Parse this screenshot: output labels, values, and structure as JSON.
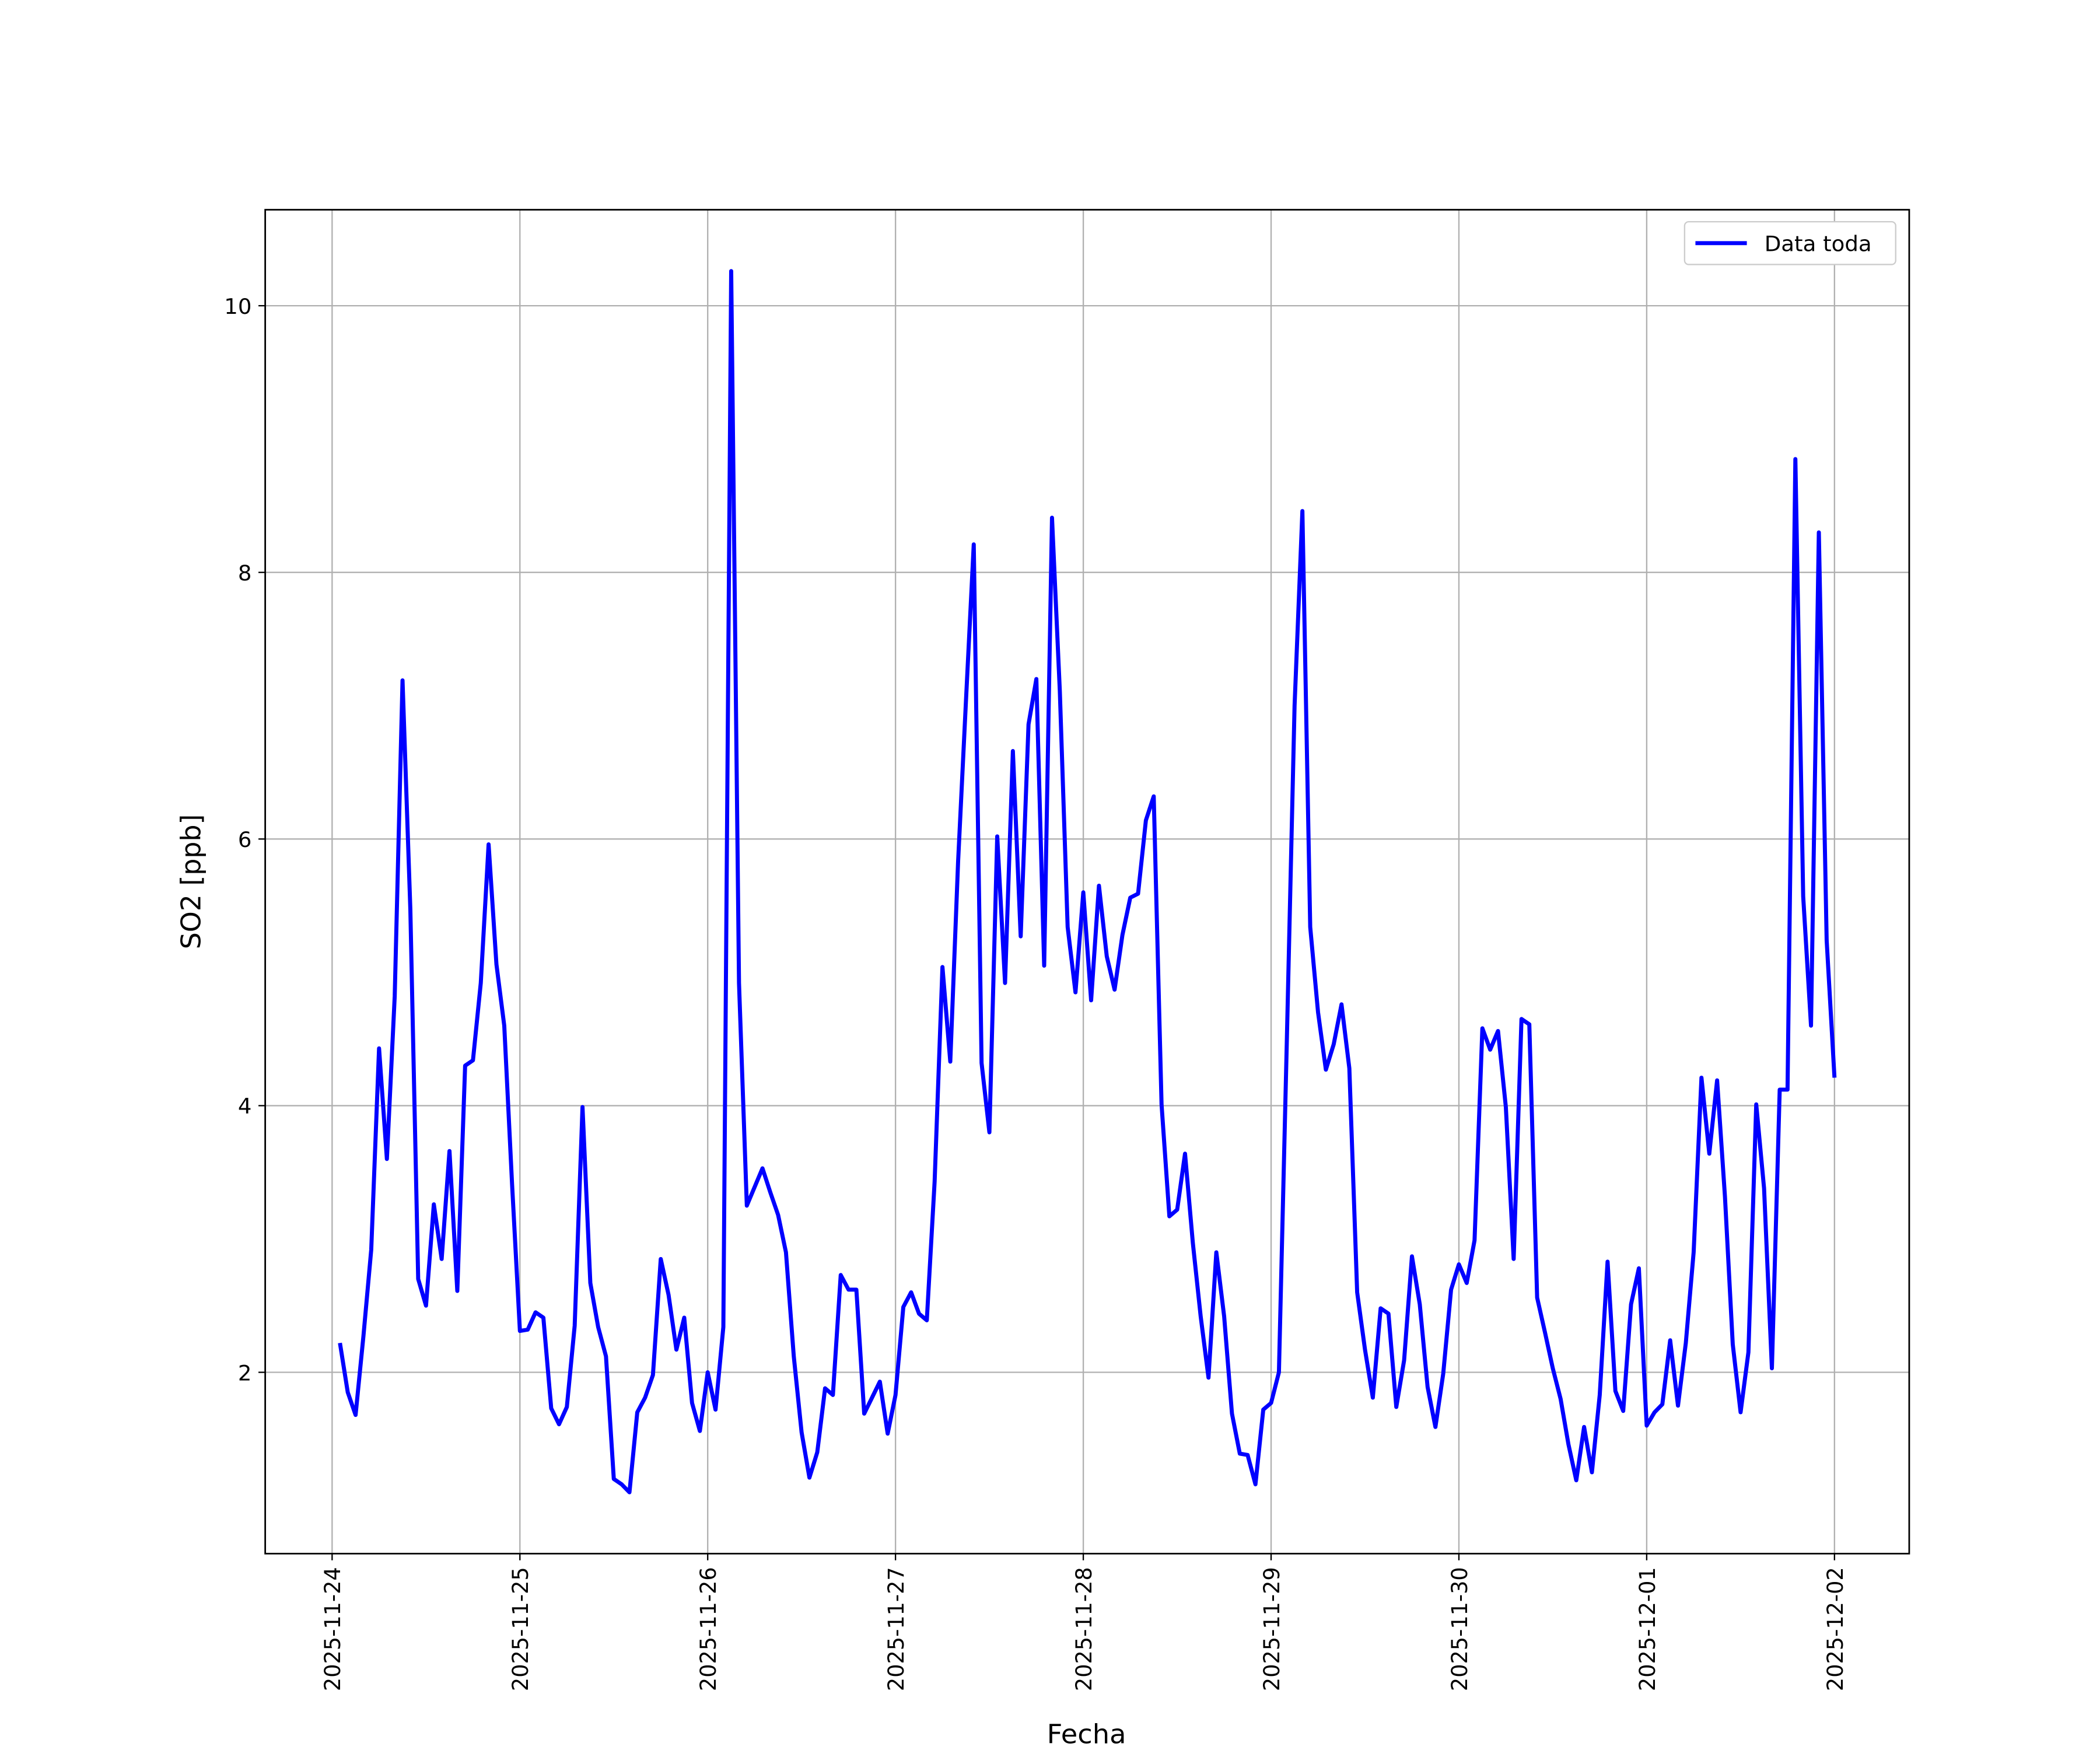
{
  "chart_data": {
    "type": "line",
    "xlabel": "Fecha",
    "ylabel": "SO2 [ppb]",
    "x": [
      "2025-11-24 01:00",
      "2025-11-24 02:00",
      "2025-11-24 03:00",
      "2025-11-24 04:00",
      "2025-11-24 05:00",
      "2025-11-24 06:00",
      "2025-11-24 07:00",
      "2025-11-24 08:00",
      "2025-11-24 09:00",
      "2025-11-24 10:00",
      "2025-11-24 11:00",
      "2025-11-24 12:00",
      "2025-11-24 13:00",
      "2025-11-24 14:00",
      "2025-11-24 15:00",
      "2025-11-24 16:00",
      "2025-11-24 17:00",
      "2025-11-24 18:00",
      "2025-11-24 19:00",
      "2025-11-24 20:00",
      "2025-11-24 21:00",
      "2025-11-24 22:00",
      "2025-11-24 23:00",
      "2025-11-25 00:00",
      "2025-11-25 01:00",
      "2025-11-25 02:00",
      "2025-11-25 03:00",
      "2025-11-25 04:00",
      "2025-11-25 05:00",
      "2025-11-25 06:00",
      "2025-11-25 07:00",
      "2025-11-25 08:00",
      "2025-11-25 09:00",
      "2025-11-25 10:00",
      "2025-11-25 11:00",
      "2025-11-25 12:00",
      "2025-11-25 13:00",
      "2025-11-25 14:00",
      "2025-11-25 15:00",
      "2025-11-25 16:00",
      "2025-11-25 17:00",
      "2025-11-25 18:00",
      "2025-11-25 19:00",
      "2025-11-25 20:00",
      "2025-11-25 21:00",
      "2025-11-25 22:00",
      "2025-11-25 23:00",
      "2025-11-26 00:00",
      "2025-11-26 01:00",
      "2025-11-26 02:00",
      "2025-11-26 03:00",
      "2025-11-26 04:00",
      "2025-11-26 05:00",
      "2025-11-26 06:00",
      "2025-11-26 07:00",
      "2025-11-26 08:00",
      "2025-11-26 09:00",
      "2025-11-26 10:00",
      "2025-11-26 11:00",
      "2025-11-26 12:00",
      "2025-11-26 13:00",
      "2025-11-26 14:00",
      "2025-11-26 15:00",
      "2025-11-26 16:00",
      "2025-11-26 17:00",
      "2025-11-26 18:00",
      "2025-11-26 19:00",
      "2025-11-26 20:00",
      "2025-11-26 21:00",
      "2025-11-26 22:00",
      "2025-11-26 23:00",
      "2025-11-27 00:00",
      "2025-11-27 01:00",
      "2025-11-27 02:00",
      "2025-11-27 03:00",
      "2025-11-27 04:00",
      "2025-11-27 05:00",
      "2025-11-27 06:00",
      "2025-11-27 07:00",
      "2025-11-27 08:00",
      "2025-11-27 09:00",
      "2025-11-27 10:00",
      "2025-11-27 11:00",
      "2025-11-27 12:00",
      "2025-11-27 13:00",
      "2025-11-27 14:00",
      "2025-11-27 15:00",
      "2025-11-27 16:00",
      "2025-11-27 17:00",
      "2025-11-27 18:00",
      "2025-11-27 19:00",
      "2025-11-27 20:00",
      "2025-11-27 21:00",
      "2025-11-27 22:00",
      "2025-11-27 23:00",
      "2025-11-28 00:00",
      "2025-11-28 01:00",
      "2025-11-28 02:00",
      "2025-11-28 03:00",
      "2025-11-28 04:00",
      "2025-11-28 05:00",
      "2025-11-28 06:00",
      "2025-11-28 07:00",
      "2025-11-28 08:00",
      "2025-11-28 09:00",
      "2025-11-28 10:00",
      "2025-11-28 11:00",
      "2025-11-28 12:00",
      "2025-11-28 13:00",
      "2025-11-28 14:00",
      "2025-11-28 15:00",
      "2025-11-28 16:00",
      "2025-11-28 17:00",
      "2025-11-28 18:00",
      "2025-11-28 19:00",
      "2025-11-28 20:00",
      "2025-11-28 21:00",
      "2025-11-28 22:00",
      "2025-11-28 23:00",
      "2025-11-29 00:00",
      "2025-11-29 01:00",
      "2025-11-29 02:00",
      "2025-11-29 03:00",
      "2025-11-29 04:00",
      "2025-11-29 05:00",
      "2025-11-29 06:00",
      "2025-11-29 07:00",
      "2025-11-29 08:00",
      "2025-11-29 09:00",
      "2025-11-29 10:00",
      "2025-11-29 11:00",
      "2025-11-29 12:00",
      "2025-11-29 13:00",
      "2025-11-29 14:00",
      "2025-11-29 15:00",
      "2025-11-29 16:00",
      "2025-11-29 17:00",
      "2025-11-29 18:00",
      "2025-11-29 19:00",
      "2025-11-29 20:00",
      "2025-11-29 21:00",
      "2025-11-29 22:00",
      "2025-11-29 23:00",
      "2025-11-30 00:00",
      "2025-11-30 01:00",
      "2025-11-30 02:00",
      "2025-11-30 03:00",
      "2025-11-30 04:00",
      "2025-11-30 05:00",
      "2025-11-30 06:00",
      "2025-11-30 07:00",
      "2025-11-30 08:00",
      "2025-11-30 09:00",
      "2025-11-30 10:00",
      "2025-11-30 11:00",
      "2025-11-30 12:00",
      "2025-11-30 13:00",
      "2025-11-30 14:00",
      "2025-11-30 15:00",
      "2025-11-30 16:00",
      "2025-11-30 17:00",
      "2025-11-30 18:00",
      "2025-11-30 19:00",
      "2025-11-30 20:00",
      "2025-11-30 21:00",
      "2025-11-30 22:00",
      "2025-11-30 23:00",
      "2025-12-01 00:00",
      "2025-12-01 01:00",
      "2025-12-01 02:00",
      "2025-12-01 03:00",
      "2025-12-01 04:00",
      "2025-12-01 05:00",
      "2025-12-01 06:00",
      "2025-12-01 07:00",
      "2025-12-01 08:00",
      "2025-12-01 09:00",
      "2025-12-01 10:00",
      "2025-12-01 11:00",
      "2025-12-01 12:00",
      "2025-12-01 13:00",
      "2025-12-01 14:00",
      "2025-12-01 15:00",
      "2025-12-01 16:00",
      "2025-12-01 17:00",
      "2025-12-01 18:00",
      "2025-12-01 19:00",
      "2025-12-01 20:00",
      "2025-12-01 21:00",
      "2025-12-01 22:00",
      "2025-12-01 23:00",
      "2025-12-02 00:00"
    ],
    "series": [
      {
        "name": "Data toda",
        "color": "#0000ff",
        "values": [
          2.22,
          1.85,
          1.68,
          2.27,
          2.92,
          4.43,
          3.6,
          4.82,
          7.19,
          5.47,
          2.7,
          2.5,
          3.26,
          2.85,
          3.66,
          2.61,
          4.3,
          4.34,
          4.92,
          5.96,
          5.06,
          4.6,
          3.41,
          2.31,
          2.32,
          2.45,
          2.41,
          1.73,
          1.61,
          1.74,
          2.35,
          3.99,
          2.67,
          2.34,
          2.12,
          1.2,
          1.16,
          1.1,
          1.7,
          1.81,
          1.98,
          2.85,
          2.58,
          2.17,
          2.41,
          1.77,
          1.56,
          2.0,
          1.72,
          2.34,
          10.26,
          4.92,
          3.25,
          3.39,
          3.53,
          3.35,
          3.18,
          2.9,
          2.12,
          1.55,
          1.21,
          1.4,
          1.88,
          1.83,
          2.73,
          2.62,
          2.62,
          1.69,
          1.81,
          1.93,
          1.54,
          1.83,
          2.49,
          2.6,
          2.44,
          2.39,
          3.43,
          5.04,
          4.33,
          5.83,
          7.03,
          8.21,
          4.32,
          3.8,
          6.02,
          4.92,
          6.66,
          5.27,
          6.86,
          7.2,
          5.05,
          8.41,
          7.11,
          5.34,
          4.85,
          5.6,
          4.79,
          5.65,
          5.12,
          4.87,
          5.28,
          5.56,
          5.59,
          6.14,
          6.32,
          4.01,
          3.17,
          3.22,
          3.64,
          2.97,
          2.42,
          1.96,
          2.9,
          2.42,
          1.69,
          1.39,
          1.38,
          1.16,
          1.72,
          1.77,
          2.0,
          4.46,
          7.0,
          8.46,
          5.34,
          4.7,
          4.27,
          4.46,
          4.76,
          4.28,
          2.6,
          2.17,
          1.81,
          2.48,
          2.44,
          1.74,
          2.09,
          2.87,
          2.51,
          1.89,
          1.59,
          1.99,
          2.62,
          2.81,
          2.67,
          2.99,
          4.58,
          4.42,
          4.56,
          3.99,
          2.85,
          4.65,
          4.61,
          2.56,
          2.3,
          2.03,
          1.8,
          1.46,
          1.19,
          1.59,
          1.25,
          1.83,
          2.83,
          1.86,
          1.71,
          2.51,
          2.78,
          1.6,
          1.7,
          1.76,
          2.24,
          1.75,
          2.22,
          2.9,
          4.21,
          3.64,
          4.19,
          3.32,
          2.21,
          1.7,
          2.15,
          4.01,
          3.38,
          2.03,
          4.12,
          4.12,
          8.85,
          5.57,
          4.6,
          8.3,
          5.24,
          4.21
        ]
      }
    ],
    "xticks": [
      "2025-11-24",
      "2025-11-25",
      "2025-11-26",
      "2025-11-27",
      "2025-11-28",
      "2025-11-29",
      "2025-11-30",
      "2025-12-01",
      "2025-12-02"
    ],
    "ylim": [
      0.64,
      10.72
    ],
    "yticks": [
      2,
      4,
      6,
      8,
      10
    ],
    "grid": true,
    "legend": "upper right"
  }
}
